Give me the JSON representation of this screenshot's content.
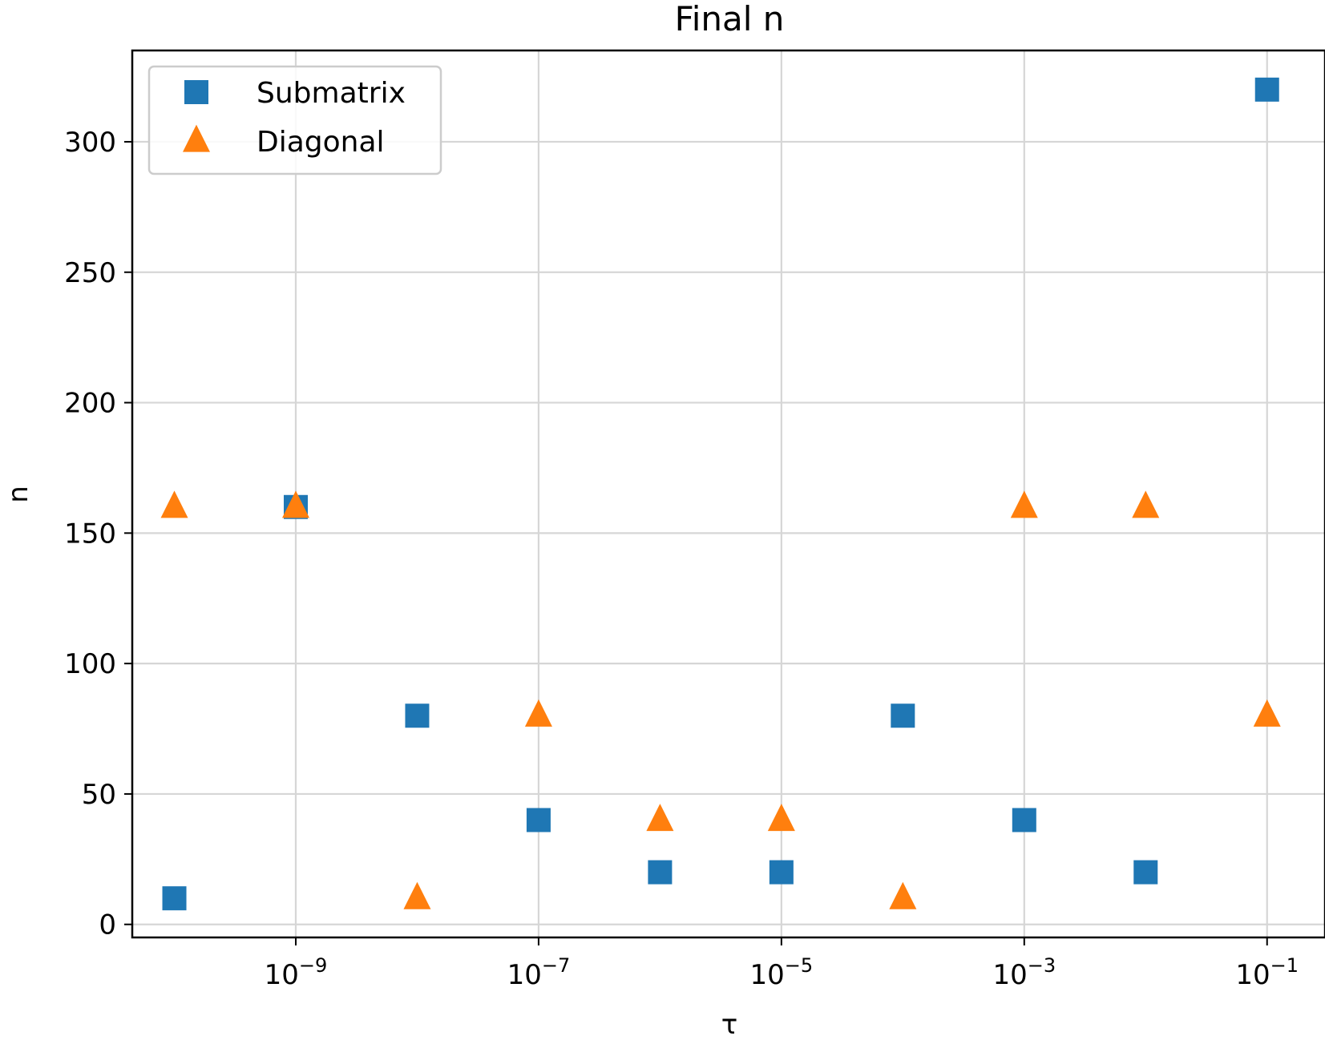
{
  "chart_data": {
    "type": "scatter",
    "title": "Final n",
    "xlabel": "τ",
    "ylabel": "n",
    "xscale": "log",
    "xlim": [
      4.5e-11,
      0.3
    ],
    "ylim": [
      -5,
      335
    ],
    "x_ticks": [
      {
        "value": 1e-09,
        "base": "10",
        "exp": "−9"
      },
      {
        "value": 1e-07,
        "base": "10",
        "exp": "−7"
      },
      {
        "value": 1e-05,
        "base": "10",
        "exp": "−5"
      },
      {
        "value": 0.001,
        "base": "10",
        "exp": "−3"
      },
      {
        "value": 0.1,
        "base": "10",
        "exp": "−1"
      }
    ],
    "y_ticks": [
      0,
      50,
      100,
      150,
      200,
      250,
      300
    ],
    "grid": true,
    "legend_position": "top-left",
    "series": [
      {
        "name": "Submatrix",
        "marker": "square",
        "color": "#1f77b4",
        "points": [
          {
            "x": 1e-10,
            "y": 10
          },
          {
            "x": 1e-09,
            "y": 160
          },
          {
            "x": 1e-08,
            "y": 80
          },
          {
            "x": 1e-07,
            "y": 40
          },
          {
            "x": 1e-06,
            "y": 20
          },
          {
            "x": 1e-05,
            "y": 20
          },
          {
            "x": 0.0001,
            "y": 80
          },
          {
            "x": 0.001,
            "y": 40
          },
          {
            "x": 0.01,
            "y": 20
          },
          {
            "x": 0.1,
            "y": 320
          }
        ]
      },
      {
        "name": "Diagonal",
        "marker": "triangle",
        "color": "#ff7f0e",
        "points": [
          {
            "x": 1e-10,
            "y": 160
          },
          {
            "x": 1e-09,
            "y": 160
          },
          {
            "x": 1e-08,
            "y": 10
          },
          {
            "x": 1e-07,
            "y": 80
          },
          {
            "x": 1e-06,
            "y": 40
          },
          {
            "x": 1e-05,
            "y": 40
          },
          {
            "x": 0.0001,
            "y": 10
          },
          {
            "x": 0.001,
            "y": 160
          },
          {
            "x": 0.01,
            "y": 160
          },
          {
            "x": 0.1,
            "y": 80
          }
        ]
      }
    ]
  }
}
